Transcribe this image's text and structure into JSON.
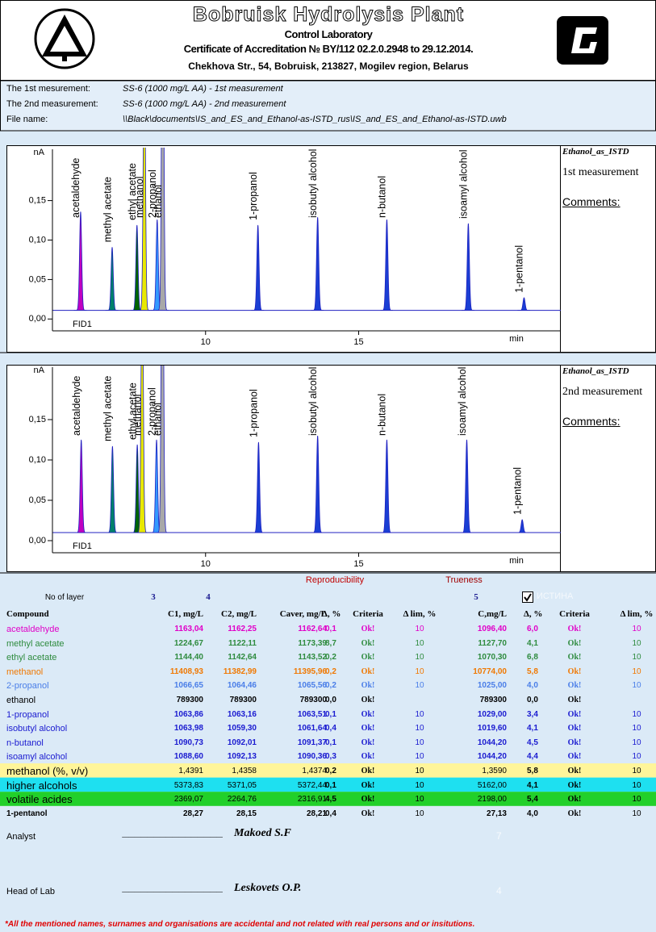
{
  "header": {
    "title": "Bobruisk Hydrolysis Plant",
    "subtitle": "Control Laboratory",
    "accreditation": "Certificate of Accreditation № BY/112 02.2.0.2948  to 29.12.2014.",
    "address": "Chekhova Str., 54, Bobruisk, 213827, Mogilev region, Belarus"
  },
  "info": [
    {
      "label": "The 1st mesurement:",
      "value": "SS-6 (1000 mg/L AA) - 1st measurement"
    },
    {
      "label": "The 2nd measurement:",
      "value": "SS-6 (1000 mg/L AA) - 2nd measurement"
    },
    {
      "label": "File name:",
      "value": "\\\\Black\\documents\\IS_and_ES_and_Ethanol-as-ISTD_rus\\IS_and_ES_and_Ethanol-as-ISTD.uwb"
    }
  ],
  "chromatograms": [
    {
      "y_unit": "nA",
      "x_unit": "min",
      "detector": "FID1",
      "xlim": [
        5,
        21.6
      ],
      "ylim": [
        -0.015,
        0.215
      ],
      "xticks": [
        10,
        15
      ],
      "yticks": [
        {
          "value": 0,
          "label": "0,00"
        },
        {
          "value": 0.05,
          "label": "0,05"
        },
        {
          "value": 0.1,
          "label": "0,10"
        },
        {
          "value": 0.15,
          "label": "0,15"
        }
      ],
      "baseline": 0.011,
      "method": "Ethanol_as_ISTD",
      "measurement": "1st measurement",
      "comments": "Comments:",
      "peaks": [
        {
          "label": "acetaldehyde",
          "time": 5.92,
          "height": 0.125,
          "color": "#c000c0"
        },
        {
          "label": "methyl acetate",
          "time": 6.95,
          "height": 0.08,
          "color": "#00806a"
        },
        {
          "label": "ethyl acetate",
          "time": 7.76,
          "height": 0.108,
          "color": "#006400"
        },
        {
          "label": "methanol",
          "time": 8.0,
          "height": 0.35,
          "color": "#e8e800"
        },
        {
          "label": "2-propanol",
          "time": 8.42,
          "height": 0.115,
          "color": "#3399ff"
        },
        {
          "label": "ethanol",
          "time": 8.6,
          "height": 0.5,
          "color": "#a8a8a8"
        },
        {
          "label": "1-propanol",
          "time": 11.71,
          "height": 0.108,
          "color": "#1a3fd4"
        },
        {
          "label": "isobutyl alcohol",
          "time": 13.66,
          "height": 0.118,
          "color": "#1a3fd4"
        },
        {
          "label": "n-butanol",
          "time": 15.92,
          "height": 0.115,
          "color": "#1a3fd4"
        },
        {
          "label": "isoamyl alcohol",
          "time": 18.58,
          "height": 0.11,
          "color": "#1a3fd4"
        },
        {
          "label": "1-pentanol",
          "time": 20.4,
          "height": 0.016,
          "color": "#1a3fd4"
        }
      ]
    },
    {
      "y_unit": "nA",
      "x_unit": "min",
      "detector": "FID1",
      "xlim": [
        5,
        21.6
      ],
      "ylim": [
        -0.015,
        0.215
      ],
      "xticks": [
        10,
        15
      ],
      "yticks": [
        {
          "value": 0,
          "label": "0,00"
        },
        {
          "value": 0.05,
          "label": "0,05"
        },
        {
          "value": 0.1,
          "label": "0,10"
        },
        {
          "value": 0.15,
          "label": "0,15"
        }
      ],
      "baseline": 0.01,
      "method": "Ethanol_as_ISTD",
      "measurement": "2nd measurement",
      "comments": "Comments:",
      "peaks": [
        {
          "label": "acetaldehyde",
          "time": 5.94,
          "height": 0.115,
          "color": "#c000c0"
        },
        {
          "label": "methyl acetate",
          "time": 6.96,
          "height": 0.107,
          "color": "#00806a"
        },
        {
          "label": "ethyl acetate",
          "time": 7.77,
          "height": 0.109,
          "color": "#006400"
        },
        {
          "label": "methanol",
          "time": 7.93,
          "height": 0.35,
          "color": "#e8e800"
        },
        {
          "label": "2-propanol",
          "time": 8.4,
          "height": 0.115,
          "color": "#3399ff"
        },
        {
          "label": "ethanol",
          "time": 8.59,
          "height": 0.5,
          "color": "#a8a8a8"
        },
        {
          "label": "1-propanol",
          "time": 11.73,
          "height": 0.112,
          "color": "#1a3fd4"
        },
        {
          "label": "isobutyl alcohol",
          "time": 13.66,
          "height": 0.12,
          "color": "#1a3fd4"
        },
        {
          "label": "n-butanol",
          "time": 15.92,
          "height": 0.115,
          "color": "#1a3fd4"
        },
        {
          "label": "isoamyl alcohol",
          "time": 18.53,
          "height": 0.115,
          "color": "#1a3fd4"
        },
        {
          "label": "1-pentanol",
          "time": 20.34,
          "height": 0.016,
          "color": "#1a3fd4"
        }
      ]
    }
  ],
  "table": {
    "reproducibility": "Reproducibility",
    "trueness": "Trueness",
    "layer_label": "No of layer",
    "layers": [
      "3",
      "4",
      "5"
    ],
    "flag": "ИСТИНА",
    "columns": [
      "Compound",
      "C1, mg/L",
      "C2, mg/L",
      "Caver, mg/L",
      "Δ,  %",
      "Criteria",
      "Δ lim, %",
      "C,mg/L",
      "Δ,  %",
      "Criteria",
      "Δ lim, %"
    ],
    "rows": [
      {
        "color": "#e000c8",
        "cells": [
          "acetaldehyde",
          "1163,04",
          "1162,25",
          "1162,64",
          "0,1",
          "Ok!",
          "10",
          "1096,40",
          "6,0",
          "Ok!",
          "10"
        ]
      },
      {
        "color": "#2e8b3e",
        "cells": [
          "methyl acetate",
          "1224,67",
          "1122,11",
          "1173,39",
          "8,7",
          "Ok!",
          "10",
          "1127,70",
          "4,1",
          "Ok!",
          "10"
        ]
      },
      {
        "color": "#2e8b3e",
        "cells": [
          "ethyl acetate",
          "1144,40",
          "1142,64",
          "1143,52",
          "0,2",
          "Ok!",
          "10",
          "1070,30",
          "6,8",
          "Ok!",
          "10"
        ]
      },
      {
        "color": "#f07800",
        "cells": [
          "methanol",
          "11408,93",
          "11382,99",
          "11395,96",
          "0,2",
          "Ok!",
          "10",
          "10774,00",
          "5,8",
          "Ok!",
          "10"
        ]
      },
      {
        "color": "#4a7ee8",
        "cells": [
          "2-propanol",
          "1066,65",
          "1064,46",
          "1065,56",
          "0,2",
          "Ok!",
          "10",
          "1025,00",
          "4,0",
          "Ok!",
          "10"
        ]
      },
      {
        "color": "#000000",
        "cells": [
          "ethanol",
          "789300",
          "789300",
          "789300",
          "0,0",
          "Ok!",
          null,
          "789300",
          "0,0",
          "Ok!",
          null
        ]
      },
      {
        "color": "#1a1ad0",
        "cells": [
          "1-propanol",
          "1063,86",
          "1063,16",
          "1063,51",
          "0,1",
          "Ok!",
          "10",
          "1029,00",
          "3,4",
          "Ok!",
          "10"
        ]
      },
      {
        "color": "#1a1ad0",
        "cells": [
          "isobutyl alcohol",
          "1063,98",
          "1059,30",
          "1061,64",
          "0,4",
          "Ok!",
          "10",
          "1019,60",
          "4,1",
          "Ok!",
          "10"
        ]
      },
      {
        "color": "#1a1ad0",
        "cells": [
          "n-butanol",
          "1090,73",
          "1092,01",
          "1091,37",
          "0,1",
          "Ok!",
          "10",
          "1044,20",
          "4,5",
          "Ok!",
          "10"
        ]
      },
      {
        "color": "#1a1ad0",
        "cells": [
          "isoamyl alcohol",
          "1088,60",
          "1092,13",
          "1090,36",
          "0,3",
          "Ok!",
          "10",
          "1044,20",
          "4,4",
          "Ok!",
          "10"
        ]
      },
      {
        "color": "#000000",
        "background": "#fff59a",
        "cells": [
          "methanol (%, v/v)",
          "1,4391",
          "1,4358",
          "1,4374",
          "0,2",
          "Ok!",
          "10",
          "1,3590",
          "5,8",
          "Ok!",
          "10"
        ]
      },
      {
        "color": "#000000",
        "background": "#1ee0f0",
        "cells": [
          "higher alcohols",
          "5373,83",
          "5371,05",
          "5372,44",
          "0,1",
          "Ok!",
          "10",
          "5162,00",
          "4,1",
          "Ok!",
          "10"
        ]
      },
      {
        "color": "#000000",
        "background": "#22d02a",
        "cells": [
          "volatile acides",
          "2369,07",
          "2264,76",
          "2316,91",
          "4,5",
          "Ok!",
          "10",
          "2198,00",
          "5,4",
          "Ok!",
          "10"
        ]
      },
      {
        "color": "#000000",
        "cells": [
          "1-pentanol",
          "28,27",
          "28,15",
          "28,21",
          "0,4",
          "Ok!",
          "10",
          "27,13",
          "4,0",
          "Ok!",
          "10"
        ]
      }
    ]
  },
  "signatures": [
    {
      "role": "Analyst",
      "line": "________________",
      "name": "Makoed S.F",
      "code": "7"
    },
    {
      "role": "Head of Lab",
      "line": "________________",
      "name": "Leskovets O.P.",
      "code": "4"
    }
  ],
  "note": "*All the mentioned names, surnames and organisations are accidental and not related with real persons and or insitutions."
}
